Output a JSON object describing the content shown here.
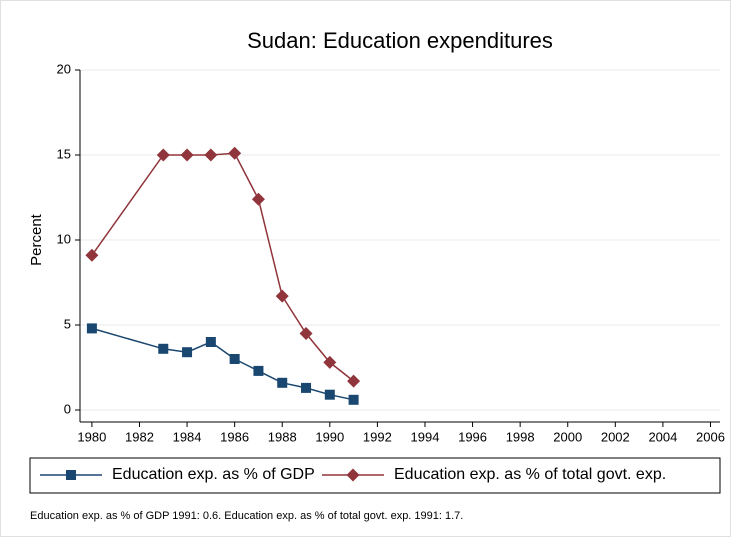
{
  "chart_data": {
    "type": "line",
    "title": "Sudan: Education expenditures",
    "ylabel": "Percent",
    "x": [
      1980,
      1983,
      1984,
      1985,
      1986,
      1987,
      1988,
      1989,
      1990,
      1991
    ],
    "series": [
      {
        "name": "Education exp. as % of GDP",
        "color": "#1a476f",
        "marker": "square",
        "values": [
          4.8,
          3.6,
          3.4,
          4.0,
          3.0,
          2.3,
          1.6,
          1.3,
          0.9,
          0.6
        ]
      },
      {
        "name": "Education exp. as % of total govt. exp.",
        "color": "#90353b",
        "marker": "diamond",
        "values": [
          9.1,
          15.0,
          15.0,
          15.0,
          15.1,
          12.4,
          6.7,
          4.5,
          2.8,
          1.7
        ]
      }
    ],
    "xlim": [
      1979.5,
      2006.4
    ],
    "xticks": [
      1980,
      1982,
      1984,
      1986,
      1988,
      1990,
      1992,
      1994,
      1996,
      1998,
      2000,
      2002,
      2004,
      2006
    ],
    "ylim": [
      0,
      20
    ],
    "yticks": [
      0,
      5,
      10,
      15,
      20
    ],
    "grid": true,
    "legend": "bottom",
    "note": "Education exp. as % of GDP 1991: 0.6. Education exp. as % of total govt. exp. 1991: 1.7."
  }
}
